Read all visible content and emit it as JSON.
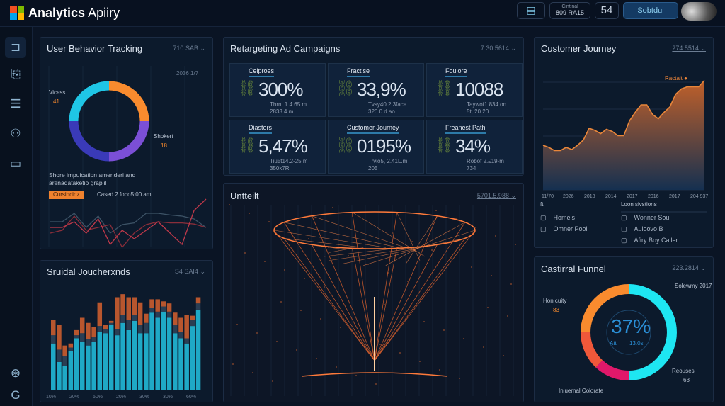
{
  "header": {
    "app_title_bold": "Analytics",
    "app_title_rest": "Apiiry",
    "notes_icon": "notes-icon",
    "status_label": "Cintinal",
    "status_value": "809 RA15",
    "count": "54",
    "user_button": "Sobtdui"
  },
  "sidebar": {
    "items": [
      {
        "icon": "pipe-icon"
      },
      {
        "icon": "document-icon"
      },
      {
        "icon": "list-icon"
      },
      {
        "icon": "people-icon"
      },
      {
        "icon": "device-icon"
      }
    ],
    "bottom": [
      {
        "icon": "settings-icon"
      },
      {
        "icon": "g-icon"
      }
    ]
  },
  "user_behavior": {
    "title": "User Behavior Tracking",
    "meta": "710 SAB",
    "corner": "2016 1/7",
    "label_left": "Vicess",
    "value_left": "41",
    "label_right": "Shokert",
    "value_right": "18",
    "caption": "Shore impuication amenderi and arenadataketio grapiil",
    "badge": "Cursincinz",
    "badge_note": "Cased 2 fobo5:00 am",
    "donut": [
      {
        "value": 25,
        "color": "#f98b2e"
      },
      {
        "value": 25,
        "color": "#7b4fd6"
      },
      {
        "value": 25,
        "color": "#3a3ab8"
      },
      {
        "value": 25,
        "color": "#1fc6e6"
      }
    ],
    "lines": [
      {
        "color": "#3d5366",
        "values": [
          40,
          40,
          55,
          30,
          50,
          20,
          35,
          38,
          55,
          55,
          52,
          50,
          45,
          30
        ]
      },
      {
        "color": "#8a2e3a",
        "values": [
          20,
          25,
          50,
          25,
          30,
          35,
          -5,
          20,
          35,
          40,
          38,
          38,
          36,
          30
        ]
      },
      {
        "color": "#c0394a",
        "values": [
          30,
          30,
          40,
          20,
          45,
          0,
          25,
          10,
          25,
          40,
          20,
          0,
          60,
          80
        ]
      }
    ]
  },
  "retargeting": {
    "title": "Retargeting Ad Campaigns",
    "meta": "7:30 5614",
    "cards": [
      {
        "label": "Celproes",
        "value": "300%",
        "sub1": "Thrnt 1.4.65 m",
        "sub2": "2833.4 m"
      },
      {
        "label": "Fractise",
        "value": "33,9%",
        "sub1": "Tvsy40.2 3face",
        "sub2": "320.0 d ao"
      },
      {
        "label": "Fouiore",
        "value": "10088",
        "sub1": "Taywof1.834 on",
        "sub2": "5t, 20.20"
      },
      {
        "label": "Diasters",
        "value": "5,47%",
        "sub1": "Tiu5t14.2-25 m",
        "sub2": "350k7R"
      },
      {
        "label": "Customer Journey",
        "value": "0195%",
        "sub1": "Trvio5, 2.41L.m",
        "sub2": "205"
      },
      {
        "label": "Freanest Path",
        "value": "34%",
        "sub1": "Robof 2.£19-m",
        "sub2": "734"
      }
    ]
  },
  "untitled": {
    "title": "Untteilt",
    "meta": "5701.5.988"
  },
  "customer_journey": {
    "title": "Customer Journey",
    "meta": "274.5514",
    "peak_label": "Ractalt",
    "chart_data": {
      "type": "area",
      "x_ticks": [
        "11/70",
        "2026",
        "2018",
        "2014",
        "2017",
        "2016",
        "2017",
        "204 937"
      ],
      "values": [
        42,
        40,
        37,
        37,
        40,
        38,
        42,
        47,
        58,
        56,
        53,
        57,
        55,
        51,
        51,
        65,
        73,
        80,
        80,
        71,
        67,
        73,
        78,
        90,
        95,
        97,
        97,
        97,
        103
      ],
      "ylim": [
        0,
        110
      ],
      "color": "#e8863a",
      "grid": true
    },
    "legend_head_left": "ft:",
    "legend_head_right": "Loon sivstions",
    "legend_left": [
      "Homels",
      "Omner Pooll"
    ],
    "legend_right": [
      "Wonner Soul",
      "Auloovo B",
      "Afiry Boy Caller"
    ]
  },
  "bar_panel": {
    "title": "Sruidal Joucherxnds",
    "meta": "S4 SAI4",
    "chart_data": {
      "type": "bar",
      "stacked": true,
      "x_ticks": [
        "10%",
        "20%",
        "50%",
        "20%",
        "30%",
        "30%",
        "60%"
      ],
      "series": [
        {
          "color": "#1fa9c6",
          "values": [
            45,
            27,
            23,
            38,
            50,
            47,
            43,
            47,
            56,
            55,
            63,
            53,
            65,
            58,
            67,
            55,
            55,
            75,
            70,
            76,
            70,
            55,
            50,
            45,
            62,
            78
          ]
        },
        {
          "color": "#2a3e54",
          "values": [
            8,
            12,
            10,
            3,
            3,
            8,
            6,
            4,
            6,
            4,
            2,
            6,
            8,
            10,
            6,
            8,
            10,
            5,
            6,
            5,
            6,
            8,
            6,
            5,
            6,
            6
          ]
        },
        {
          "color": "#b8562e",
          "values": [
            15,
            24,
            10,
            4,
            5,
            15,
            16,
            10,
            23,
            4,
            2,
            31,
            20,
            22,
            17,
            22,
            9,
            8,
            12,
            5,
            8,
            12,
            14,
            23,
            4,
            6
          ]
        }
      ],
      "ylim": [
        0,
        100
      ]
    }
  },
  "funnel_panel": {
    "title": "Castirral Funnel",
    "meta": "223.2814",
    "center_value": "37%",
    "center_left": "Att",
    "center_right": "13.0s",
    "labels": [
      {
        "text": "Hon cuity",
        "value": "83"
      },
      {
        "text": "Solewmy 2017"
      },
      {
        "text": "Reouses",
        "value": "63"
      },
      {
        "text": "Inluernal Colorate"
      }
    ],
    "donut": [
      {
        "value": 50,
        "color": "#1ee6f2"
      },
      {
        "value": 12,
        "color": "#e0186a"
      },
      {
        "value": 13,
        "color": "#f0583a"
      },
      {
        "value": 25,
        "color": "#f98b2e"
      }
    ]
  }
}
